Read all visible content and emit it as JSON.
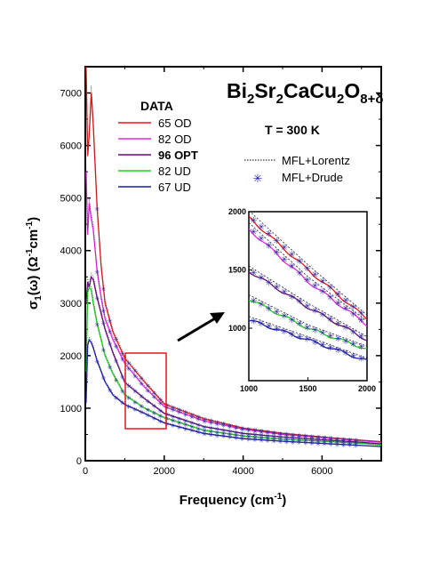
{
  "chart_data": {
    "type": "line",
    "title_parts": {
      "bi": "Bi",
      "s1": "2",
      "sr": "Sr",
      "s2": "2",
      "cacu": "CaCu",
      "s3": "2",
      "o": "O",
      "s4": "8+δ"
    },
    "temperature_label": "T = 300 K",
    "xlabel_parts": {
      "main": "Frequency (cm",
      "sup": "-1",
      "end": ")"
    },
    "ylabel_parts": {
      "sigma": "σ",
      "sub1": "1",
      "mid": "(ω) (Ω",
      "sup1": "-1",
      "cm": "cm",
      "sup2": "-1",
      "end": ")"
    },
    "xlim": [
      0,
      7500
    ],
    "ylim": [
      0,
      7500
    ],
    "xticks": [
      0,
      2000,
      4000,
      6000
    ],
    "yticks": [
      0,
      1000,
      2000,
      3000,
      4000,
      5000,
      6000,
      7000
    ],
    "xtick_labels": [
      "0",
      "2000",
      "4000",
      "6000"
    ],
    "ytick_labels": [
      "0",
      "1000",
      "2000",
      "3000",
      "4000",
      "5000",
      "6000",
      "7000"
    ],
    "legend_title": "DATA",
    "fit_legend": {
      "lorentz": "MFL+Lorentz",
      "drude": "MFL+Drude",
      "marker": "✳"
    },
    "series": [
      {
        "name": "65 OD",
        "color": "#e8151b",
        "bold": false,
        "x": [
          20,
          60,
          100,
          150,
          200,
          300,
          400,
          500,
          700,
          1000,
          1500,
          2000,
          3000,
          4000,
          5000,
          6000,
          7000,
          7500
        ],
        "y": [
          7500,
          5800,
          6200,
          7000,
          6400,
          4800,
          3700,
          3000,
          2450,
          1950,
          1500,
          1080,
          800,
          620,
          520,
          450,
          390,
          360
        ]
      },
      {
        "name": "82 OD",
        "color": "#e626e6",
        "bold": false,
        "x": [
          20,
          60,
          100,
          150,
          200,
          300,
          400,
          500,
          700,
          1000,
          1500,
          2000,
          3000,
          4000,
          5000,
          6000,
          7000,
          7500
        ],
        "y": [
          5500,
          4300,
          4900,
          4600,
          4400,
          3600,
          3100,
          2700,
          2300,
          1850,
          1400,
          1030,
          760,
          600,
          500,
          440,
          380,
          350
        ]
      },
      {
        "name": "96 OPT",
        "color": "#6a0a7a",
        "bold": true,
        "x": [
          20,
          60,
          100,
          150,
          200,
          300,
          400,
          500,
          700,
          1000,
          1500,
          2000,
          3000,
          4000,
          5000,
          6000,
          7000,
          7500
        ],
        "y": [
          3000,
          3400,
          3300,
          3500,
          3450,
          3100,
          2800,
          2500,
          2050,
          1490,
          1180,
          900,
          650,
          520,
          450,
          400,
          350,
          320
        ]
      },
      {
        "name": "82 UD",
        "color": "#19d41e",
        "bold": false,
        "x": [
          20,
          60,
          100,
          150,
          200,
          300,
          400,
          500,
          700,
          1000,
          1500,
          2000,
          3000,
          4000,
          5000,
          6000,
          7000,
          7500
        ],
        "y": [
          1700,
          3200,
          3300,
          3250,
          3000,
          2600,
          2300,
          2000,
          1650,
          1250,
          1000,
          820,
          580,
          470,
          410,
          370,
          330,
          300
        ]
      },
      {
        "name": "67 UD",
        "color": "#1c1ab0",
        "bold": false,
        "x": [
          20,
          60,
          100,
          150,
          200,
          300,
          400,
          500,
          700,
          1000,
          1500,
          2000,
          3000,
          4000,
          5000,
          6000,
          7000,
          7500
        ],
        "y": [
          1100,
          2200,
          2300,
          2250,
          2150,
          1900,
          1700,
          1500,
          1250,
          1070,
          900,
          720,
          520,
          420,
          370,
          330,
          290,
          270
        ]
      }
    ],
    "inset": {
      "xlim": [
        1000,
        2000
      ],
      "ylim": [
        550,
        2000
      ],
      "xticks": [
        1000,
        1500,
        2000
      ],
      "yticks": [
        1000,
        1500,
        2000
      ],
      "xtick_labels": [
        "1000",
        "1500",
        "2000"
      ],
      "ytick_labels": [
        "1000",
        "1500",
        "2000"
      ]
    }
  }
}
